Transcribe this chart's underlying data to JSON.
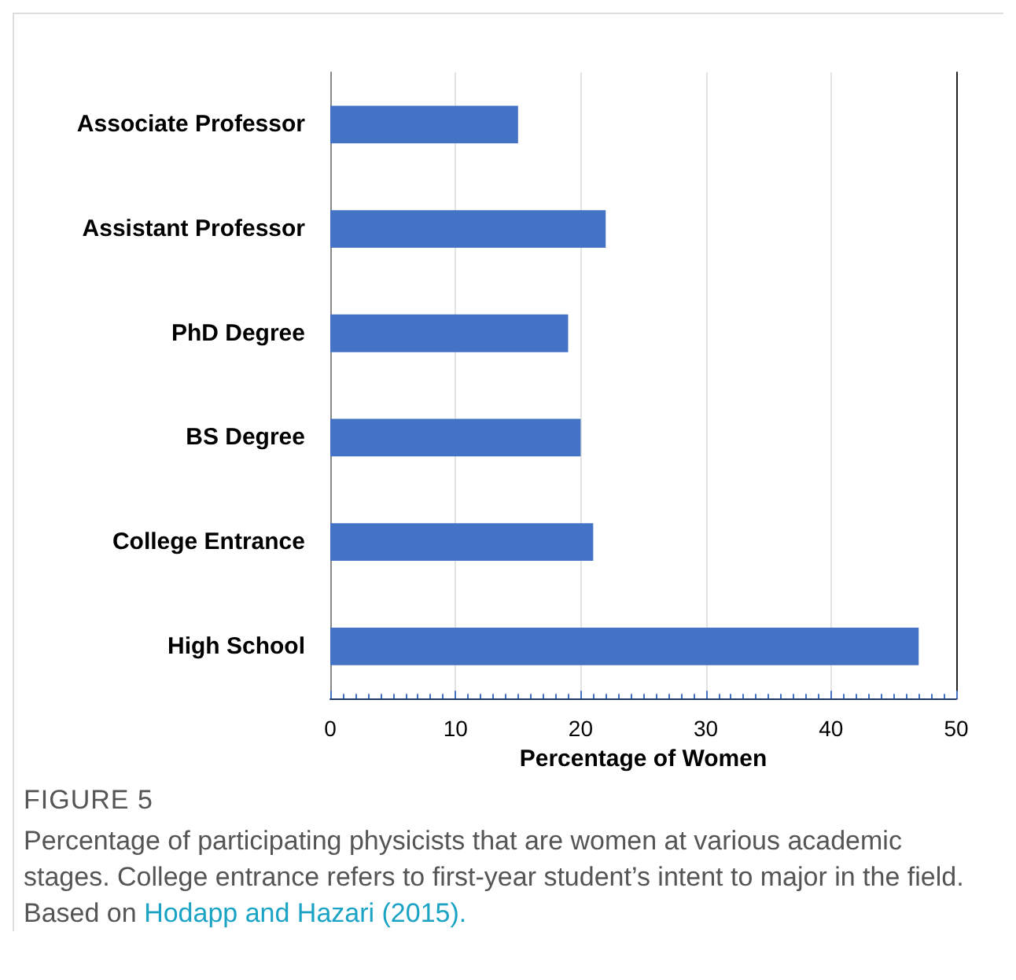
{
  "chart_data": {
    "type": "bar",
    "orientation": "horizontal",
    "title": "FIGURE 5",
    "annotations": [
      "Percentage of participating physicists that are women at various academic stages. College entrance refers to first-year student’s intent to major in the field. Based on ",
      "Hodapp and Hazari (2015)."
    ],
    "categories": [
      "Associate Professor",
      "Assistant Professor",
      "PhD Degree",
      "BS Degree",
      "College Entrance",
      "High School"
    ],
    "values": [
      15,
      22,
      19,
      20,
      21,
      47
    ],
    "color": "#4472c4",
    "xlabel": "Percentage of Women",
    "xlim": [
      0,
      50
    ],
    "xticks": [
      0,
      10,
      20,
      30,
      40,
      50
    ],
    "grid": "x"
  }
}
